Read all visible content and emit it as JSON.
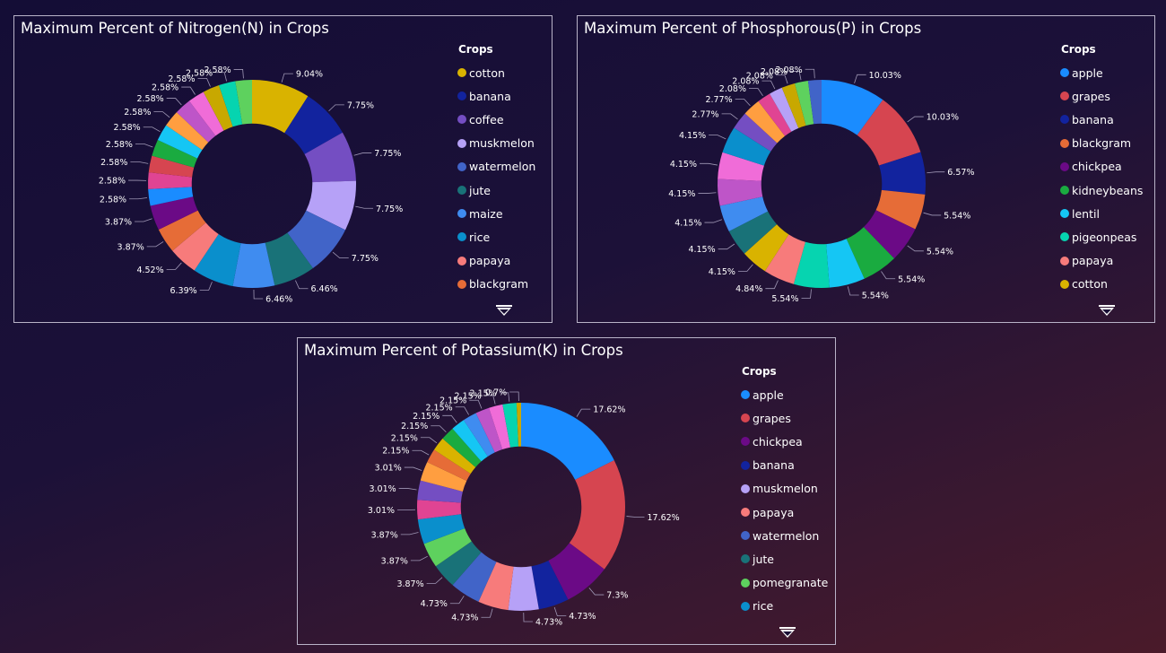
{
  "colors": {
    "apple": "#1a8cff",
    "grapes": "#d64550",
    "chickpea": "#6b0a86",
    "banana": "#12239e",
    "muskmelon": "#b6a1f7",
    "papaya": "#f77b7b",
    "watermelon": "#4164c8",
    "jute": "#197278",
    "pomegranate": "#5ed15e",
    "rice": "#0a8fcc",
    "cotton": "#d9b300",
    "coffee": "#744ec2",
    "maize": "#3f8cf0",
    "blackgram": "#e66c37",
    "kidneybeans": "#1aab40",
    "lentil": "#15c6f4",
    "pigeonpeas": "#06d4b0",
    "mango": "#f06cd8",
    "orange": "#ff9e40",
    "mothbeans": "#be55c8",
    "mungbean": "#e04493",
    "coconut": "#3c7dd9",
    "extra1": "#8a6ad8",
    "extra2": "#c0c0ff"
  },
  "charts": {
    "nitrogen": {
      "title": "Maximum Percent of Nitrogen(N) in Crops",
      "legend_title": "Crops",
      "legend": [
        "cotton",
        "banana",
        "coffee",
        "muskmelon",
        "watermelon",
        "jute",
        "maize",
        "rice",
        "papaya",
        "blackgram"
      ]
    },
    "phosphorous": {
      "title": "Maximum Percent of Phosphorous(P) in Crops",
      "legend_title": "Crops",
      "legend": [
        "apple",
        "grapes",
        "banana",
        "blackgram",
        "chickpea",
        "kidneybeans",
        "lentil",
        "pigeonpeas",
        "papaya",
        "cotton"
      ]
    },
    "potassium": {
      "title": "Maximum Percent of Potassium(K) in Crops",
      "legend_title": "Crops",
      "legend": [
        "apple",
        "grapes",
        "chickpea",
        "banana",
        "muskmelon",
        "papaya",
        "watermelon",
        "jute",
        "pomegranate",
        "rice"
      ]
    }
  },
  "chart_data": [
    {
      "type": "pie",
      "title": "Maximum Percent of Nitrogen(N) in Crops",
      "legend_title": "Crops",
      "series": [
        {
          "name": "cotton",
          "value": 9.04,
          "color": "#d9b300"
        },
        {
          "name": "banana",
          "value": 7.75,
          "color": "#12239e"
        },
        {
          "name": "coffee",
          "value": 7.75,
          "color": "#744ec2"
        },
        {
          "name": "muskmelon",
          "value": 7.75,
          "color": "#b6a1f7"
        },
        {
          "name": "watermelon",
          "value": 7.75,
          "color": "#4164c8"
        },
        {
          "name": "jute",
          "value": 6.46,
          "color": "#197278"
        },
        {
          "name": "maize",
          "value": 6.46,
          "color": "#3f8cf0"
        },
        {
          "name": "rice",
          "value": 6.39,
          "color": "#0a8fcc"
        },
        {
          "name": "papaya",
          "value": 4.52,
          "color": "#f77b7b"
        },
        {
          "name": "blackgram",
          "value": 3.87,
          "color": "#e66c37"
        },
        {
          "value": 3.87,
          "color": "#6b0a86"
        },
        {
          "value": 2.58,
          "color": "#1a8cff"
        },
        {
          "value": 2.58,
          "color": "#e04493"
        },
        {
          "value": 2.58,
          "color": "#d64550"
        },
        {
          "value": 2.58,
          "color": "#1aab40"
        },
        {
          "value": 2.58,
          "color": "#15c6f4"
        },
        {
          "value": 2.58,
          "color": "#ff9e40"
        },
        {
          "value": 2.58,
          "color": "#be55c8"
        },
        {
          "value": 2.58,
          "color": "#f06cd8"
        },
        {
          "value": 2.58,
          "color": "#c8a800"
        },
        {
          "value": 2.58,
          "color": "#06d4b0"
        },
        {
          "value": 2.58,
          "color": "#5ed15e"
        }
      ],
      "label_format": "percent_of_total",
      "inner_radius_ratio": 0.58
    },
    {
      "type": "pie",
      "title": "Maximum Percent of Phosphorous(P) in Crops",
      "legend_title": "Crops",
      "series": [
        {
          "name": "apple",
          "value": 10.03,
          "color": "#1a8cff"
        },
        {
          "name": "grapes",
          "value": 10.03,
          "color": "#d64550"
        },
        {
          "name": "banana",
          "value": 6.57,
          "color": "#12239e"
        },
        {
          "name": "blackgram",
          "value": 5.54,
          "color": "#e66c37"
        },
        {
          "name": "chickpea",
          "value": 5.54,
          "color": "#6b0a86"
        },
        {
          "name": "kidneybeans",
          "value": 5.54,
          "color": "#1aab40"
        },
        {
          "name": "lentil",
          "value": 5.54,
          "color": "#15c6f4"
        },
        {
          "name": "pigeonpeas",
          "value": 5.54,
          "color": "#06d4b0"
        },
        {
          "name": "papaya",
          "value": 4.84,
          "color": "#f77b7b"
        },
        {
          "name": "cotton",
          "value": 4.15,
          "color": "#d9b300"
        },
        {
          "value": 4.15,
          "color": "#197278"
        },
        {
          "value": 4.15,
          "color": "#3f8cf0"
        },
        {
          "value": 4.15,
          "color": "#be55c8"
        },
        {
          "value": 4.15,
          "color": "#f06cd8"
        },
        {
          "value": 4.15,
          "color": "#0a8fcc"
        },
        {
          "value": 2.77,
          "color": "#744ec2"
        },
        {
          "value": 2.77,
          "color": "#ff9e40"
        },
        {
          "value": 2.08,
          "color": "#e04493"
        },
        {
          "value": 2.08,
          "color": "#b6a1f7"
        },
        {
          "value": 2.08,
          "color": "#c8a800"
        },
        {
          "value": 2.08,
          "color": "#5ed15e"
        },
        {
          "value": 2.08,
          "color": "#4164c8"
        }
      ],
      "label_format": "percent_of_total",
      "inner_radius_ratio": 0.58
    },
    {
      "type": "pie",
      "title": "Maximum Percent of Potassium(K) in Crops",
      "legend_title": "Crops",
      "series": [
        {
          "name": "apple",
          "value": 17.52,
          "color": "#1a8cff"
        },
        {
          "name": "grapes",
          "value": 17.52,
          "color": "#d64550"
        },
        {
          "name": "chickpea",
          "value": 7.26,
          "color": "#6b0a86"
        },
        {
          "name": "banana",
          "value": 4.7,
          "color": "#12239e"
        },
        {
          "name": "muskmelon",
          "value": 4.7,
          "color": "#b6a1f7"
        },
        {
          "name": "papaya",
          "value": 4.7,
          "color": "#f77b7b"
        },
        {
          "name": "watermelon",
          "value": 4.7,
          "color": "#4164c8"
        },
        {
          "name": "jute",
          "value": 3.85,
          "color": "#197278"
        },
        {
          "name": "pomegranate",
          "value": 3.85,
          "color": "#5ed15e"
        },
        {
          "name": "rice",
          "value": 3.85,
          "color": "#0a8fcc"
        },
        {
          "value": 2.99,
          "color": "#e04493"
        },
        {
          "value": 2.99,
          "color": "#744ec2"
        },
        {
          "value": 2.99,
          "color": "#ff9e40"
        },
        {
          "value": 2.14,
          "color": "#e66c37"
        },
        {
          "value": 2.14,
          "color": "#d9b300"
        },
        {
          "value": 2.14,
          "color": "#1aab40"
        },
        {
          "value": 2.14,
          "color": "#15c6f4"
        },
        {
          "value": 2.14,
          "color": "#3f8cf0"
        },
        {
          "value": 2.14,
          "color": "#be55c8"
        },
        {
          "value": 2.14,
          "color": "#f06cd8"
        },
        {
          "value": 2.14,
          "color": "#06d4b0"
        },
        {
          "value": 0.7,
          "color": "#c8a800"
        }
      ],
      "label_format": "percent_of_total",
      "inner_radius_ratio": 0.58
    }
  ]
}
